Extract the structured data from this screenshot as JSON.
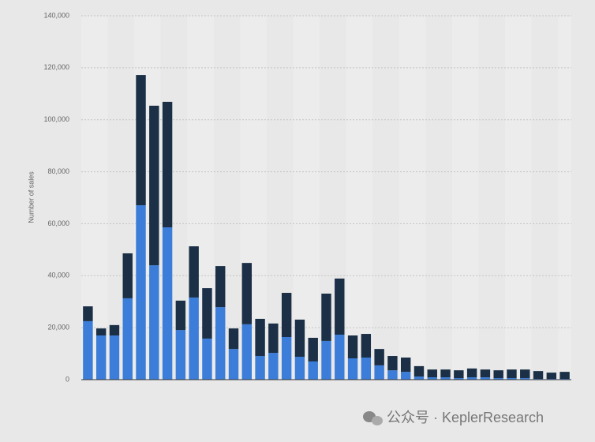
{
  "chart_data": {
    "type": "stacked_bar",
    "y_label": "Number of sales",
    "watermark": "公众号 · KeplerResearch",
    "categories": [
      null,
      null,
      null,
      null,
      null,
      null,
      null,
      null,
      null,
      null,
      null,
      null,
      null,
      null,
      null,
      null,
      null,
      null,
      null,
      null,
      null,
      null,
      null,
      null,
      null,
      null,
      null,
      null,
      null,
      null,
      null,
      null,
      null,
      null,
      null,
      null,
      null
    ],
    "series": [
      {
        "color": "#3b7dd8",
        "values": [
          22500,
          17000,
          17000,
          31300,
          67100,
          44000,
          58600,
          19100,
          31600,
          15800,
          27900,
          11800,
          21300,
          9100,
          10300,
          16400,
          8800,
          7000,
          14900,
          17300,
          8200,
          8500,
          5500,
          3600,
          3000,
          1200,
          900,
          900,
          600,
          900,
          900,
          600,
          600,
          600,
          300,
          300,
          300
        ]
      },
      {
        "color": "#1b2f46",
        "values": [
          5700,
          2700,
          4000,
          17300,
          50100,
          61400,
          48300,
          11300,
          19700,
          19400,
          15800,
          7900,
          23600,
          14300,
          11300,
          17000,
          14300,
          9100,
          18200,
          21600,
          8800,
          9100,
          6300,
          5500,
          5500,
          4000,
          3000,
          3000,
          3000,
          3400,
          3000,
          3000,
          3300,
          3300,
          3000,
          2400,
          2700
        ]
      }
    ],
    "ylim": [
      0,
      140000
    ],
    "yticks": [
      0,
      {
        "value": 20000,
        "label": "20,000"
      },
      {
        "value": 40000,
        "label": "40,000"
      },
      {
        "value": 60000,
        "label": "60,000"
      },
      {
        "value": 80000,
        "label": "80,000"
      },
      {
        "value": 100000,
        "label": "100,000"
      },
      {
        "value": 120000,
        "label": "120,000"
      },
      {
        "value": 140000,
        "label": "140,000"
      }
    ],
    "grid": true
  }
}
